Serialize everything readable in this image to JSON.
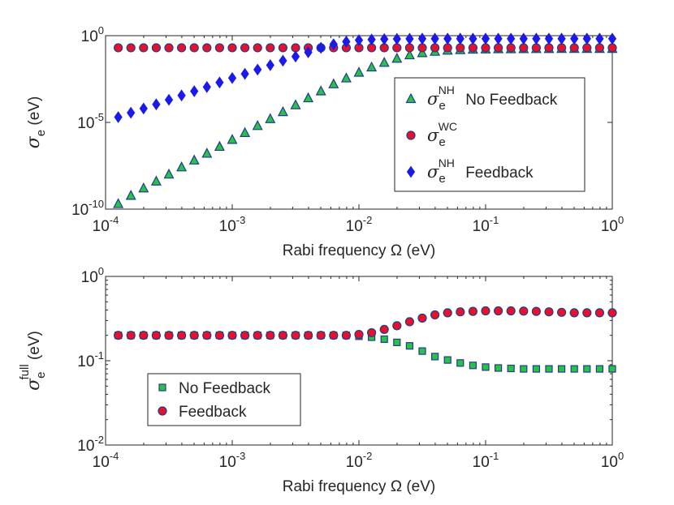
{
  "chart_data": [
    {
      "type": "scatter",
      "xscale": "log",
      "yscale": "log",
      "xlim": [
        0.0001,
        1
      ],
      "ylim": [
        1e-10,
        1
      ],
      "xticks": [
        0.0001,
        0.001,
        0.01,
        0.1,
        1
      ],
      "yticks": [
        1e-10,
        1e-05,
        1
      ],
      "xtick_labels": [
        {
          "base": "10",
          "exp": "-4"
        },
        {
          "base": "10",
          "exp": "-3"
        },
        {
          "base": "10",
          "exp": "-2"
        },
        {
          "base": "10",
          "exp": "-1"
        },
        {
          "base": "10",
          "exp": "0"
        }
      ],
      "ytick_labels": [
        {
          "base": "10",
          "exp": "-10"
        },
        {
          "base": "10",
          "exp": "-5"
        },
        {
          "base": "10",
          "exp": "0"
        }
      ],
      "xlabel": "Rabi frequency Ω (eV)",
      "ylabel": {
        "sym": "σ",
        "sub": "e",
        "rest": " (eV)"
      },
      "x": {
        "start": 0.00012589,
        "end": 1,
        "count": 40
      },
      "legend_location": "right",
      "series": [
        {
          "name": "σ_e^NH No Feedback",
          "legend": {
            "sym": "σ",
            "sub": "e",
            "sup": "NH",
            "text": "No Feedback"
          },
          "marker": "triangle",
          "fill": "#2bc04a",
          "edge": "#1c3f8a",
          "values": [
            2e-10,
            6e-10,
            1.6e-09,
            4e-09,
            1e-08,
            2.6e-08,
            6.5e-08,
            1.6e-07,
            4e-07,
            1e-06,
            2.5e-06,
            6.3e-06,
            1.58e-05,
            4e-05,
            0.0001,
            0.00025,
            0.00063,
            0.0016,
            0.0035,
            0.0075,
            0.015,
            0.028,
            0.048,
            0.075,
            0.1,
            0.12,
            0.14,
            0.15,
            0.16,
            0.165,
            0.17,
            0.17,
            0.172,
            0.173,
            0.174,
            0.175,
            0.175,
            0.176,
            0.176,
            0.176
          ]
        },
        {
          "name": "σ_e^WC",
          "legend": {
            "sym": "σ",
            "sub": "e",
            "sup": "WC",
            "text": ""
          },
          "marker": "circle",
          "fill": "#e8102a",
          "edge": "#1c3f8a",
          "values": [
            0.2,
            0.2,
            0.2,
            0.2,
            0.2,
            0.2,
            0.2,
            0.2,
            0.2,
            0.2,
            0.2,
            0.2,
            0.2,
            0.2,
            0.2,
            0.2,
            0.2,
            0.2,
            0.2,
            0.2,
            0.2,
            0.2,
            0.2,
            0.2,
            0.2,
            0.2,
            0.2,
            0.2,
            0.2,
            0.2,
            0.2,
            0.2,
            0.2,
            0.2,
            0.2,
            0.2,
            0.2,
            0.2,
            0.2,
            0.2
          ]
        },
        {
          "name": "σ_e^NH Feedback",
          "legend": {
            "sym": "σ",
            "sub": "e",
            "sup": "NH",
            "text": "Feedback"
          },
          "marker": "diamond",
          "fill": "#1a1aeb",
          "edge": "#1a1aeb",
          "values": [
            2e-05,
            3.6e-05,
            6.3e-05,
            0.00011,
            0.0002,
            0.00036,
            0.00063,
            0.0011,
            0.002,
            0.0036,
            0.0063,
            0.011,
            0.02,
            0.036,
            0.063,
            0.11,
            0.2,
            0.32,
            0.45,
            0.55,
            0.6,
            0.63,
            0.65,
            0.66,
            0.67,
            0.67,
            0.67,
            0.67,
            0.67,
            0.67,
            0.67,
            0.67,
            0.67,
            0.67,
            0.67,
            0.67,
            0.67,
            0.67,
            0.67,
            0.67
          ]
        }
      ]
    },
    {
      "type": "scatter",
      "xscale": "log",
      "yscale": "log",
      "xlim": [
        0.0001,
        1
      ],
      "ylim": [
        0.01,
        1
      ],
      "xticks": [
        0.0001,
        0.001,
        0.01,
        0.1,
        1
      ],
      "yticks": [
        0.01,
        0.1,
        1
      ],
      "xtick_labels": [
        {
          "base": "10",
          "exp": "-4"
        },
        {
          "base": "10",
          "exp": "-3"
        },
        {
          "base": "10",
          "exp": "-2"
        },
        {
          "base": "10",
          "exp": "-1"
        },
        {
          "base": "10",
          "exp": "0"
        }
      ],
      "ytick_labels": [
        {
          "base": "10",
          "exp": "-2"
        },
        {
          "base": "10",
          "exp": "-1"
        },
        {
          "base": "10",
          "exp": "0"
        }
      ],
      "xlabel": "Rabi frequency Ω (eV)",
      "ylabel": {
        "sym": "σ",
        "sub": "e",
        "sup": "full",
        "rest": " (eV)"
      },
      "x": {
        "start": 0.00012589,
        "end": 1,
        "count": 40
      },
      "legend_location": "lower-left",
      "series": [
        {
          "name": "No Feedback",
          "legend": {
            "text": "No Feedback"
          },
          "marker": "square",
          "fill": "#2bc04a",
          "edge": "#1c3f8a",
          "values": [
            0.2,
            0.2,
            0.2,
            0.2,
            0.2,
            0.2,
            0.2,
            0.2,
            0.2,
            0.2,
            0.2,
            0.2,
            0.2,
            0.2,
            0.2,
            0.2,
            0.2,
            0.2,
            0.2,
            0.195,
            0.19,
            0.18,
            0.165,
            0.15,
            0.13,
            0.112,
            0.102,
            0.094,
            0.088,
            0.084,
            0.082,
            0.081,
            0.08,
            0.08,
            0.08,
            0.08,
            0.08,
            0.08,
            0.08,
            0.08
          ]
        },
        {
          "name": "Feedback",
          "legend": {
            "text": "Feedback"
          },
          "marker": "circle",
          "fill": "#e8102a",
          "edge": "#1c3f8a",
          "values": [
            0.2,
            0.2,
            0.2,
            0.2,
            0.2,
            0.2,
            0.2,
            0.2,
            0.2,
            0.2,
            0.2,
            0.2,
            0.2,
            0.2,
            0.2,
            0.2,
            0.2,
            0.2,
            0.2,
            0.205,
            0.215,
            0.235,
            0.26,
            0.29,
            0.32,
            0.35,
            0.37,
            0.38,
            0.385,
            0.39,
            0.39,
            0.39,
            0.388,
            0.385,
            0.38,
            0.375,
            0.37,
            0.37,
            0.37,
            0.37
          ]
        }
      ]
    }
  ]
}
